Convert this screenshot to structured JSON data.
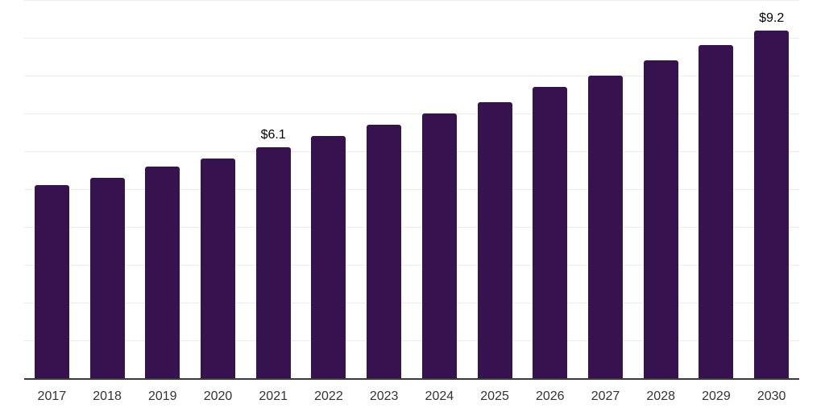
{
  "chart_data": {
    "type": "bar",
    "categories": [
      "2017",
      "2018",
      "2019",
      "2020",
      "2021",
      "2022",
      "2023",
      "2024",
      "2025",
      "2026",
      "2027",
      "2028",
      "2029",
      "2030"
    ],
    "values": [
      5.1,
      5.3,
      5.6,
      5.8,
      6.1,
      6.4,
      6.7,
      7.0,
      7.3,
      7.7,
      8.0,
      8.4,
      8.8,
      9.2
    ],
    "value_prefix": "$",
    "data_labels": [
      {
        "category": "2021",
        "text": "$6.1"
      },
      {
        "category": "2030",
        "text": "$9.2"
      }
    ],
    "ylim": [
      0,
      10
    ],
    "grid": {
      "horizontal": true,
      "interval": 1,
      "vertical": false
    },
    "legend": "none",
    "y_axis_labels": "none",
    "colors": {
      "bar": "#36124E",
      "gridline": "#ededed",
      "axis_line": "#3b3b3b",
      "category_label": "#333333",
      "data_label": "#000000",
      "background": "#ffffff"
    }
  }
}
